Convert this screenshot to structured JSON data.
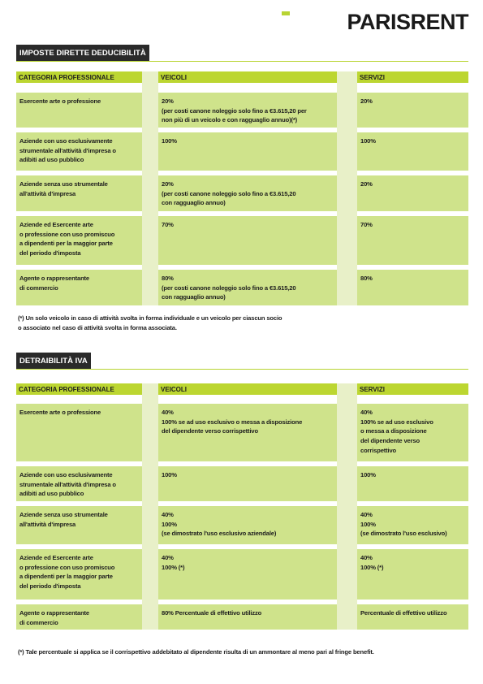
{
  "logo": "PARISRENT",
  "sections": [
    {
      "title": "IMPOSTE DIRETTE DEDUCIBILITÀ",
      "header": [
        "CATEGORIA PROFESSIONALE",
        "VEICOLI",
        "SERVIZI"
      ],
      "rows": [
        [
          [
            "Esercente arte o professione"
          ],
          [
            "20%",
            "(per costi canone noleggio solo fino a €3.615,20 per",
            "non più di un veicolo e con ragguaglio annuo)(*)"
          ],
          [
            "20%"
          ]
        ],
        [
          [
            "Aziende con uso esclusivamente",
            "strumentale all'attività d'impresa o",
            "adibiti ad uso pubblico"
          ],
          [
            "100%"
          ],
          [
            "100%"
          ]
        ],
        [
          [
            "Aziende senza uso strumentale",
            "all'attività d'impresa"
          ],
          [
            "20%",
            "(per costi canone noleggio solo fino a €3.615,20",
            "con ragguaglio annuo)"
          ],
          [
            "20%"
          ]
        ],
        [
          [
            "Aziende ed Esercente arte",
            "o professione con uso promiscuo",
            "a dipendenti per la maggior parte",
            "del periodo d'imposta"
          ],
          [
            "70%"
          ],
          [
            "70%"
          ]
        ],
        [
          [
            "Agente o rappresentante",
            "di commercio"
          ],
          [
            "80%",
            "(per costi canone noleggio solo fino a €3.615,20",
            "con ragguaglio annuo)"
          ],
          [
            "80%"
          ]
        ]
      ],
      "footnote": [
        "(*) Un solo veicolo in caso di attività svolta in forma individuale e un veicolo per ciascun socio",
        "o associato nel caso di attività svolta in forma associata."
      ]
    },
    {
      "title": "DETRAIBILITÀ IVA",
      "header": [
        "CATEGORIA PROFESSIONALE",
        "VEICOLI",
        "SERVIZI"
      ],
      "rows": [
        [
          [
            "Esercente arte o professione"
          ],
          [
            "40%",
            "100% se ad uso esclusivo o messa a disposizione",
            "del dipendente verso corrispettivo"
          ],
          [
            "40%",
            "100% se ad uso esclusivo",
            "o messa a disposizione",
            "del dipendente verso",
            "corrispettivo"
          ]
        ],
        [
          [
            "Aziende con uso esclusivamente",
            "strumentale all'attività d'impresa o",
            "adibiti ad uso pubblico"
          ],
          [
            "100%"
          ],
          [
            "100%"
          ]
        ],
        [
          [
            "Aziende senza uso strumentale",
            "all'attività d'impresa"
          ],
          [
            "40%",
            "100%",
            "(se dimostrato l'uso esclusivo aziendale)"
          ],
          [
            "40%",
            "100%",
            "(se dimostrato l'uso esclusivo)"
          ]
        ],
        [
          [
            "Aziende ed Esercente arte",
            "o professione con uso promiscuo",
            "a dipendenti per la maggior parte",
            "del periodo d'imposta"
          ],
          [
            "40%",
            "100% (*)"
          ],
          [
            "40%",
            "100% (*)"
          ]
        ],
        [
          [
            "Agente o rappresentante",
            "di commercio"
          ],
          [
            "80% Percentuale di effettivo utilizzo"
          ],
          [
            "Percentuale di effettivo utilizzo"
          ]
        ]
      ],
      "footnote": [
        "(*) Tale percentuale si applica se il corrispettivo addebitato al dipendente risulta di un ammontare al meno pari al fringe benefit."
      ]
    }
  ]
}
